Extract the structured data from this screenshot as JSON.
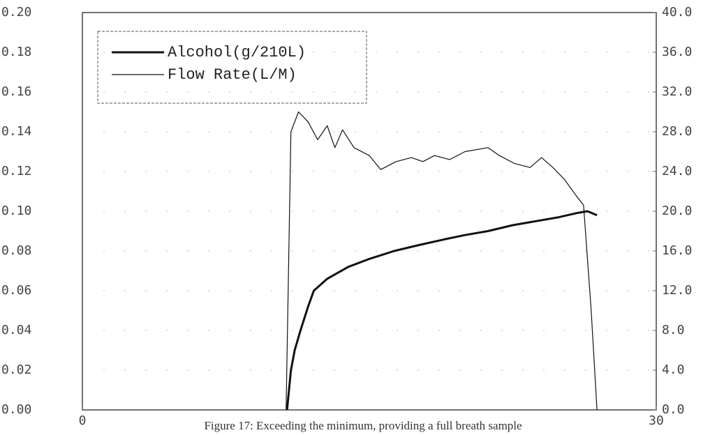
{
  "chart_data": {
    "type": "line",
    "caption": "Figure 17: Exceeding the minimum, providing a full breath sample",
    "xlim": [
      0,
      30
    ],
    "xticks": [
      0,
      30
    ],
    "ylim": [
      0,
      0.2
    ],
    "yticks": [
      {
        "value": 0,
        "label": "0.00"
      },
      {
        "value": 0.02,
        "label": "0.02"
      },
      {
        "value": 0.04,
        "label": "0.04"
      },
      {
        "value": 0.06,
        "label": "0.06"
      },
      {
        "value": 0.08,
        "label": "0.08"
      },
      {
        "value": 0.1,
        "label": "0.10"
      },
      {
        "value": 0.12,
        "label": "0.12"
      },
      {
        "value": 0.14,
        "label": "0.14"
      },
      {
        "value": 0.16,
        "label": "0.16"
      },
      {
        "value": 0.18,
        "label": "0.18"
      },
      {
        "value": 0.2,
        "label": "0.20"
      }
    ],
    "y2lim": [
      0,
      40
    ],
    "y2ticks": [
      {
        "value": 0,
        "label": "0.0"
      },
      {
        "value": 4,
        "label": "4.0"
      },
      {
        "value": 8,
        "label": "8.0"
      },
      {
        "value": 12,
        "label": "12.0"
      },
      {
        "value": 16,
        "label": "16.0"
      },
      {
        "value": 20,
        "label": "20.0"
      },
      {
        "value": 24,
        "label": "24.0"
      },
      {
        "value": 28,
        "label": "28.0"
      },
      {
        "value": 32,
        "label": "32.0"
      },
      {
        "value": 36,
        "label": "36.0"
      },
      {
        "value": 40,
        "label": "40.0"
      }
    ],
    "grid": true,
    "legend": "upper left",
    "series": [
      {
        "name": "Alcohol(g/210L)",
        "color": "#111111",
        "width": 3,
        "axis": "y",
        "x": [
          10.7,
          10.9,
          11.1,
          11.4,
          11.8,
          12.1,
          12.8,
          13.9,
          15.0,
          16.3,
          17.6,
          19.0,
          20.0,
          21.2,
          22.5,
          23.7,
          24.9,
          25.8,
          26.4,
          26.9
        ],
        "values": [
          0,
          0.02,
          0.03,
          0.04,
          0.052,
          0.06,
          0.066,
          0.072,
          0.076,
          0.08,
          0.083,
          0.086,
          0.088,
          0.09,
          0.093,
          0.095,
          0.097,
          0.099,
          0.1,
          0.098
        ]
      },
      {
        "name": "Flow Rate(L/M)",
        "color": "#111111",
        "width": 1.2,
        "axis": "y2",
        "x": [
          10.65,
          10.9,
          11.3,
          11.8,
          12.3,
          12.8,
          13.2,
          13.6,
          14.2,
          15.0,
          15.6,
          16.4,
          17.2,
          17.8,
          18.4,
          19.2,
          20.0,
          21.2,
          21.8,
          22.6,
          23.4,
          24.0,
          24.6,
          25.2,
          25.8,
          26.2,
          26.6,
          26.9
        ],
        "values": [
          0,
          28,
          30,
          29,
          27.2,
          28.6,
          26.4,
          28.2,
          26.4,
          25.6,
          24.2,
          25.0,
          25.4,
          25.0,
          25.6,
          25.2,
          26.0,
          26.4,
          25.6,
          24.8,
          24.4,
          25.4,
          24.4,
          23.2,
          21.6,
          20.6,
          10,
          0
        ]
      }
    ]
  }
}
